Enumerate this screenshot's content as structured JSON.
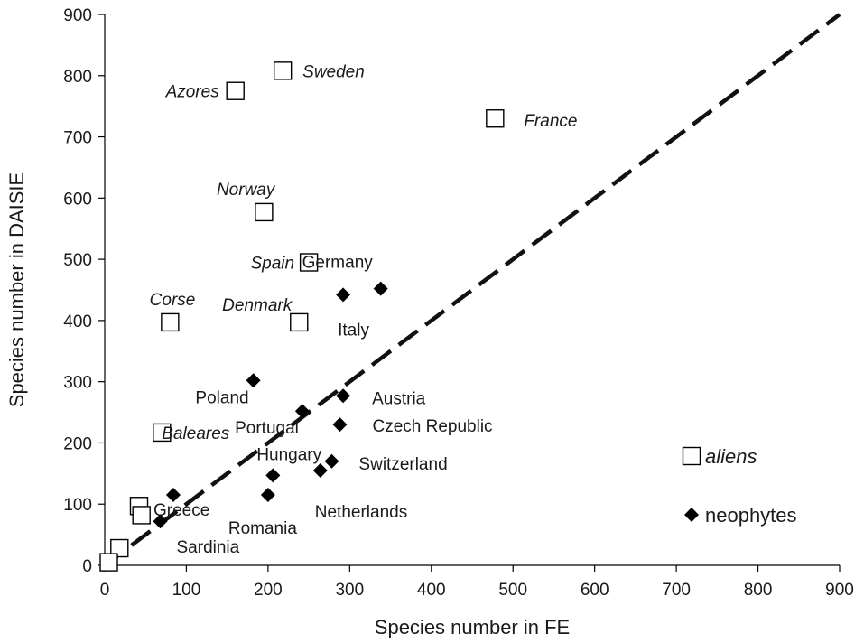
{
  "chart_data": {
    "type": "scatter",
    "xlabel": "Species number in FE",
    "ylabel": "Species number in DAISIE",
    "xlim": [
      0,
      900
    ],
    "ylim": [
      0,
      900
    ],
    "xticks": [
      0,
      100,
      200,
      300,
      400,
      500,
      600,
      700,
      800,
      900
    ],
    "yticks": [
      0,
      100,
      200,
      300,
      400,
      500,
      600,
      700,
      800,
      900
    ],
    "grid": false,
    "reference_line": {
      "style": "dashed",
      "from": [
        0,
        0
      ],
      "to": [
        900,
        900
      ]
    },
    "legend": {
      "placement": "bottom-right",
      "entries": [
        {
          "series": "aliens",
          "label": "aliens",
          "marker": "open-square",
          "italic": true
        },
        {
          "series": "neophytes",
          "label": "neophytes",
          "marker": "filled-diamond",
          "italic": false
        }
      ]
    },
    "series": [
      {
        "name": "aliens",
        "marker": "open-square",
        "points": [
          {
            "x": 160,
            "y": 775,
            "label": "Azores"
          },
          {
            "x": 218,
            "y": 808,
            "label": "Sweden"
          },
          {
            "x": 478,
            "y": 730,
            "label": "France"
          },
          {
            "x": 195,
            "y": 577,
            "label": "Norway"
          },
          {
            "x": 250,
            "y": 495,
            "label": "Spain"
          },
          {
            "x": 80,
            "y": 397,
            "label": "Corse"
          },
          {
            "x": 238,
            "y": 397,
            "label": "Denmark"
          },
          {
            "x": 70,
            "y": 217,
            "label": "Baleares"
          },
          {
            "x": 42,
            "y": 97,
            "label": ""
          },
          {
            "x": 45,
            "y": 82,
            "label": ""
          },
          {
            "x": 18,
            "y": 28,
            "label": ""
          },
          {
            "x": 5,
            "y": 5,
            "label": ""
          }
        ]
      },
      {
        "name": "neophytes",
        "marker": "filled-diamond",
        "points": [
          {
            "x": 338,
            "y": 452,
            "label": "Germany"
          },
          {
            "x": 292,
            "y": 442,
            "label": "Italy"
          },
          {
            "x": 182,
            "y": 302,
            "label": "Poland"
          },
          {
            "x": 292,
            "y": 277,
            "label": "Austria"
          },
          {
            "x": 242,
            "y": 252,
            "label": "Portugal"
          },
          {
            "x": 288,
            "y": 230,
            "label": "Czech Republic"
          },
          {
            "x": 278,
            "y": 170,
            "label": "Switzerland"
          },
          {
            "x": 264,
            "y": 155,
            "label": "Netherlands"
          },
          {
            "x": 206,
            "y": 147,
            "label": "Hungary"
          },
          {
            "x": 200,
            "y": 115,
            "label": "Romania"
          },
          {
            "x": 84,
            "y": 115,
            "label": "Greece"
          },
          {
            "x": 68,
            "y": 72,
            "label": "Sardinia"
          }
        ]
      }
    ]
  }
}
